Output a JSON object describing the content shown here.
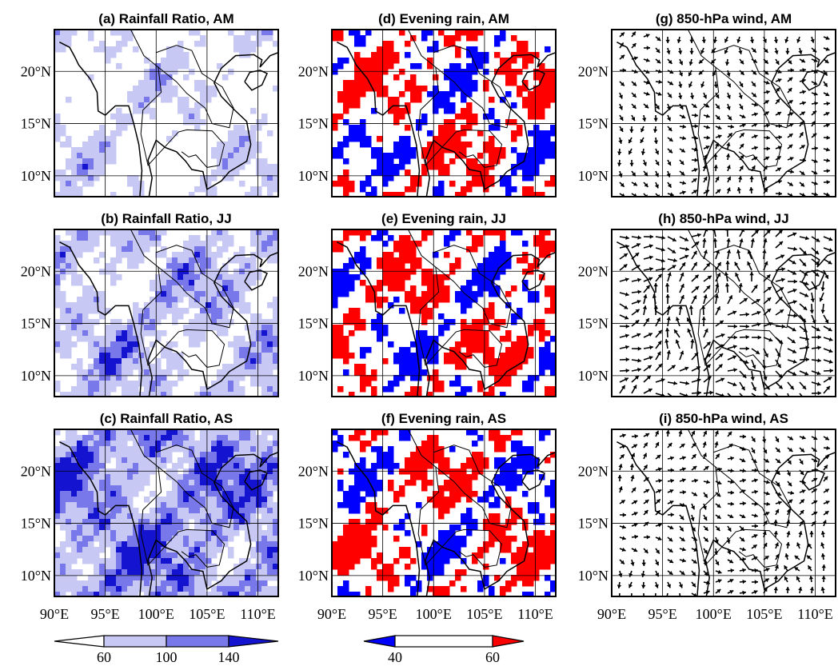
{
  "panels": [
    {
      "title": "(a) Rainfall Ratio, AM"
    },
    {
      "title": "(b) Rainfall Ratio, JJ"
    },
    {
      "title": "(c) Rainfall Ratio, AS"
    },
    {
      "title": "(d) Evening rain, AM"
    },
    {
      "title": "(e) Evening rain, JJ"
    },
    {
      "title": "(f) Evening rain, AS"
    },
    {
      "title": "(g) 850-hPa wind, AM"
    },
    {
      "title": "(h) 850-hPa wind, JJ"
    },
    {
      "title": "(i) 850-hPa wind, AS"
    }
  ],
  "lon_range": [
    90,
    112
  ],
  "lat_range": [
    8,
    24
  ],
  "lat_ticks": [
    {
      "value": 20,
      "label": "20°N"
    },
    {
      "value": 15,
      "label": "15°N"
    },
    {
      "value": 10,
      "label": "10°N"
    }
  ],
  "lon_ticks": [
    {
      "value": 90,
      "label": "90°E"
    },
    {
      "value": 95,
      "label": "95°E"
    },
    {
      "value": 100,
      "label": "100°E"
    },
    {
      "value": 105,
      "label": "105°E"
    },
    {
      "value": 110,
      "label": "110°E"
    }
  ],
  "colorbars": [
    {
      "ticks": [
        60,
        100,
        140
      ],
      "colors": [
        "#ffffff",
        "#c8c8f5",
        "#7878ea",
        "#1414d0"
      ]
    },
    {
      "ticks": [
        40,
        60
      ],
      "colors": [
        "#0000ff",
        "#ffffff",
        "#ff0000"
      ]
    }
  ]
}
